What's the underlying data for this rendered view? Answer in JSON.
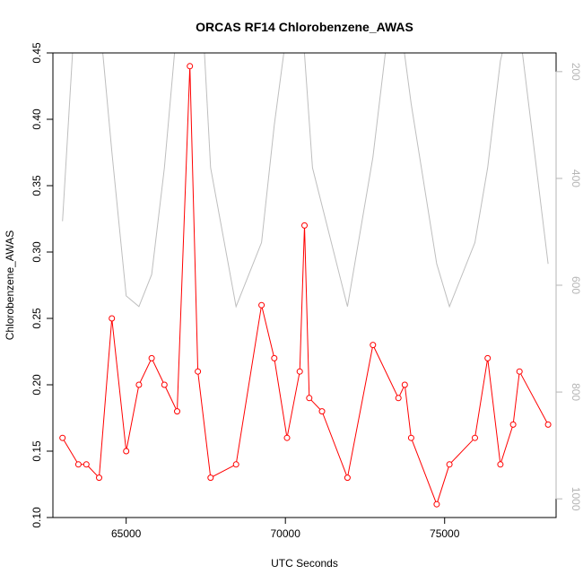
{
  "chart_data": {
    "type": "line",
    "title": "ORCAS RF14 Chlorobenzene_AWAS",
    "xlabel": "UTC Seconds",
    "ylabel": "Chlorobenzene_AWAS",
    "xlim": [
      62700,
      78500
    ],
    "ylim": [
      0.1,
      0.45
    ],
    "x_ticks": [
      65000,
      70000,
      75000
    ],
    "x_tick_labels": [
      "65000",
      "70000",
      "75000"
    ],
    "y_ticks": [
      0.1,
      0.15,
      0.2,
      0.25,
      0.3,
      0.35,
      0.4,
      0.45
    ],
    "y_tick_labels": [
      "0.10",
      "0.15",
      "0.20",
      "0.25",
      "0.30",
      "0.35",
      "0.40",
      "0.45"
    ],
    "y2_reversed": true,
    "y2lim": [
      1035,
      165
    ],
    "y2_ticks": [
      200,
      400,
      600,
      800,
      1000
    ],
    "y2_tick_labels": [
      "200",
      "400",
      "600",
      "800",
      "1000"
    ],
    "series": [
      {
        "color": "#ff0000",
        "axis": "left",
        "markers": true,
        "x": [
          63000,
          63500,
          63750,
          64150,
          64550,
          65000,
          65400,
          65800,
          66200,
          66600,
          67000,
          67250,
          67650,
          68450,
          69250,
          69650,
          70050,
          70450,
          70600,
          70750,
          71150,
          71950,
          72750,
          73550,
          73750,
          73950,
          74750,
          75150,
          75950,
          76350,
          76750,
          77150,
          77350,
          78250
        ],
        "y": [
          0.16,
          0.14,
          0.14,
          0.13,
          0.25,
          0.15,
          0.2,
          0.22,
          0.2,
          0.18,
          0.44,
          0.21,
          0.13,
          0.14,
          0.26,
          0.22,
          0.16,
          0.21,
          0.32,
          0.19,
          0.18,
          0.13,
          0.23,
          0.19,
          0.2,
          0.16,
          0.11,
          0.14,
          0.16,
          0.22,
          0.14,
          0.17,
          0.21,
          0.17
        ]
      },
      {
        "color": "#bebebe",
        "axis": "right",
        "markers": false,
        "x": [
          63000,
          63400,
          63750,
          64150,
          64550,
          65000,
          65400,
          65800,
          66200,
          66600,
          67000,
          67400,
          67650,
          68450,
          69250,
          69650,
          70050,
          70450,
          70850,
          71950,
          72750,
          73150,
          73550,
          73950,
          74750,
          75150,
          75950,
          76350,
          76750,
          77150,
          77350,
          78250
        ],
        "y": [
          480,
          80,
          20,
          90,
          350,
          620,
          640,
          580,
          380,
          110,
          20,
          100,
          380,
          640,
          520,
          300,
          120,
          40,
          380,
          640,
          360,
          160,
          80,
          260,
          560,
          640,
          520,
          380,
          180,
          80,
          120,
          560
        ]
      }
    ]
  }
}
